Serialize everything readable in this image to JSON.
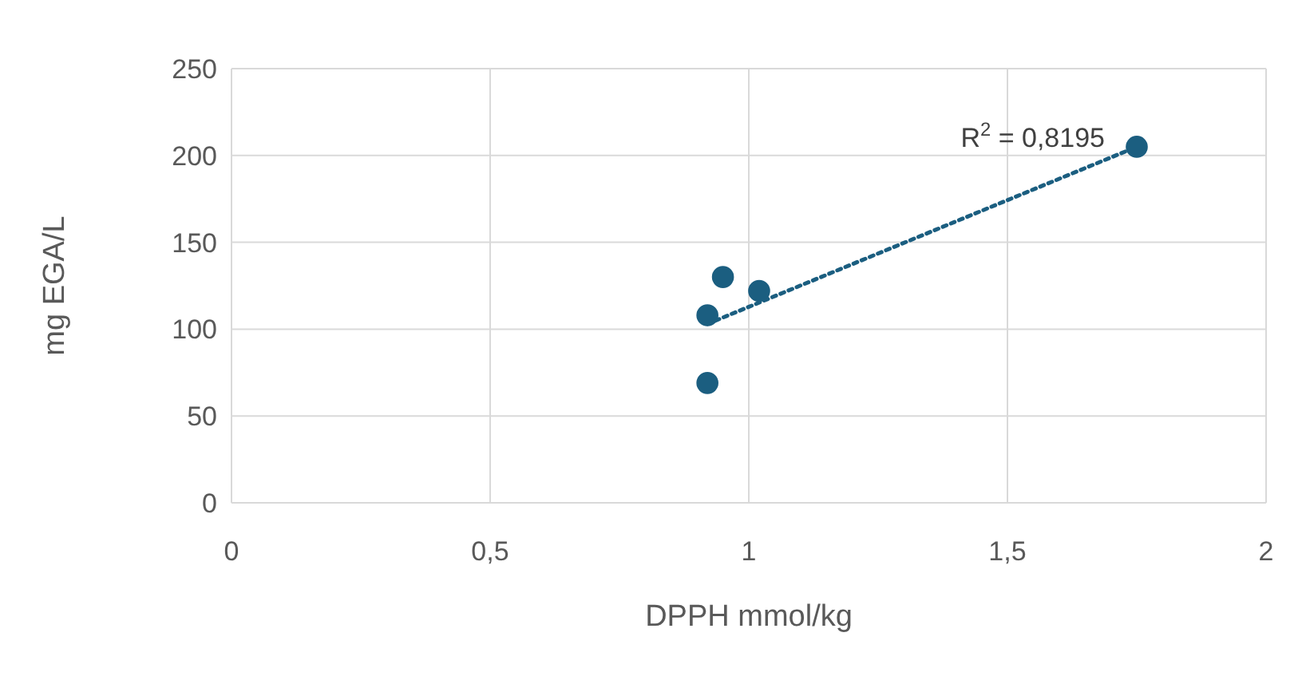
{
  "chart_data": {
    "type": "scatter",
    "xlabel": "DPPH mmol/kg",
    "ylabel": "mg EGA/L",
    "xlim": [
      0,
      2
    ],
    "xticks": [
      0,
      {
        "value": 0.5,
        "label": "0,5"
      },
      1,
      {
        "value": 1.5,
        "label": "1,5"
      },
      2
    ],
    "ylim": [
      0,
      250
    ],
    "yticks": [
      0,
      50,
      100,
      150,
      200,
      250
    ],
    "grid": true,
    "series": [
      {
        "color": "#1b5e80",
        "marker": "circle",
        "x": [
          0.92,
          0.92,
          0.95,
          1.02,
          1.75
        ],
        "values": [
          69,
          108,
          130,
          122,
          205
        ]
      },
      {
        "type": "line",
        "color": "#1b5e80",
        "line_style": "dotted",
        "x": [
          0.92,
          1.75
        ],
        "values": [
          103,
          205
        ]
      }
    ],
    "annotations": [
      "R$^{2}$ = 0,8195"
    ]
  }
}
